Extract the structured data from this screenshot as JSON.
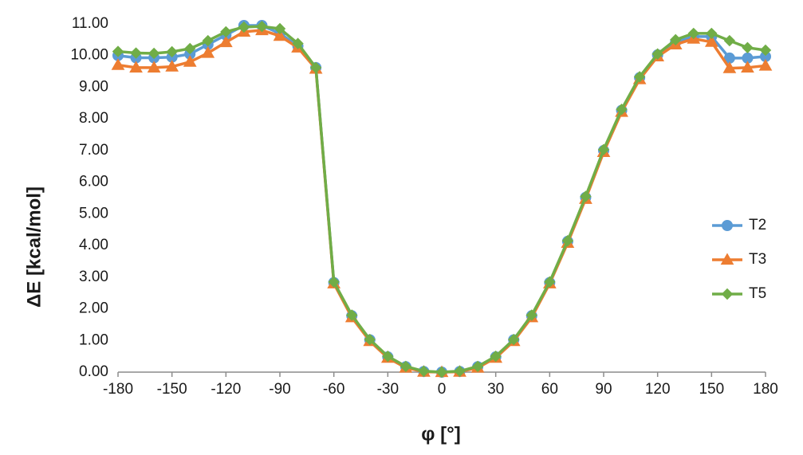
{
  "chart_data": {
    "type": "line",
    "xlabel": "φ [°]",
    "ylabel": "ΔE [kcal/mol]",
    "xlim": [
      -180,
      180
    ],
    "ylim": [
      0,
      11
    ],
    "xticks": [
      -180,
      -150,
      -120,
      -90,
      -60,
      -30,
      0,
      30,
      60,
      90,
      120,
      150,
      180
    ],
    "yticks": [
      0,
      1,
      2,
      3,
      4,
      5,
      6,
      7,
      8,
      9,
      10,
      11
    ],
    "xtick_labels": [
      "-180",
      "-150",
      "-120",
      "-90",
      "-60",
      "-30",
      "0",
      "30",
      "60",
      "90",
      "120",
      "150",
      "180"
    ],
    "ytick_labels": [
      "0.00",
      "1.00",
      "2.00",
      "3.00",
      "4.00",
      "5.00",
      "6.00",
      "7.00",
      "8.00",
      "9.00",
      "10.00",
      "11.00"
    ],
    "grid": false,
    "legend_position": "right",
    "x": [
      -180,
      -170,
      -160,
      -150,
      -140,
      -130,
      -120,
      -110,
      -100,
      -90,
      -80,
      -70,
      -60,
      -50,
      -40,
      -30,
      -20,
      -10,
      0,
      10,
      20,
      30,
      40,
      50,
      60,
      70,
      80,
      90,
      100,
      110,
      120,
      130,
      140,
      150,
      160,
      170,
      180
    ],
    "series": [
      {
        "name": "T2",
        "color": "#5b9bd5",
        "marker": "circle",
        "values": [
          10.0,
          9.93,
          9.93,
          9.95,
          10.05,
          10.35,
          10.65,
          10.95,
          10.95,
          10.7,
          10.3,
          9.62,
          2.83,
          1.78,
          1.02,
          0.48,
          0.17,
          0.02,
          0.0,
          0.02,
          0.17,
          0.48,
          1.02,
          1.78,
          2.83,
          4.13,
          5.52,
          7.0,
          8.27,
          9.3,
          10.02,
          10.42,
          10.6,
          10.6,
          9.92,
          9.92,
          9.97
        ]
      },
      {
        "name": "T3",
        "color": "#ed7d31",
        "marker": "triangle",
        "values": [
          9.7,
          9.62,
          9.62,
          9.65,
          9.8,
          10.08,
          10.42,
          10.75,
          10.8,
          10.62,
          10.25,
          9.58,
          2.8,
          1.73,
          0.98,
          0.45,
          0.14,
          0.01,
          0.0,
          0.01,
          0.14,
          0.45,
          0.98,
          1.73,
          2.8,
          4.08,
          5.47,
          6.95,
          8.22,
          9.25,
          9.97,
          10.35,
          10.53,
          10.43,
          9.6,
          9.62,
          9.68
        ]
      },
      {
        "name": "T5",
        "color": "#70ad47",
        "marker": "diamond",
        "values": [
          10.13,
          10.08,
          10.07,
          10.12,
          10.22,
          10.47,
          10.75,
          10.9,
          10.92,
          10.85,
          10.38,
          9.62,
          2.85,
          1.8,
          1.03,
          0.5,
          0.18,
          0.03,
          0.0,
          0.03,
          0.18,
          0.5,
          1.03,
          1.8,
          2.85,
          4.15,
          5.55,
          7.03,
          8.3,
          9.33,
          10.05,
          10.5,
          10.7,
          10.7,
          10.47,
          10.25,
          10.17
        ]
      }
    ]
  }
}
